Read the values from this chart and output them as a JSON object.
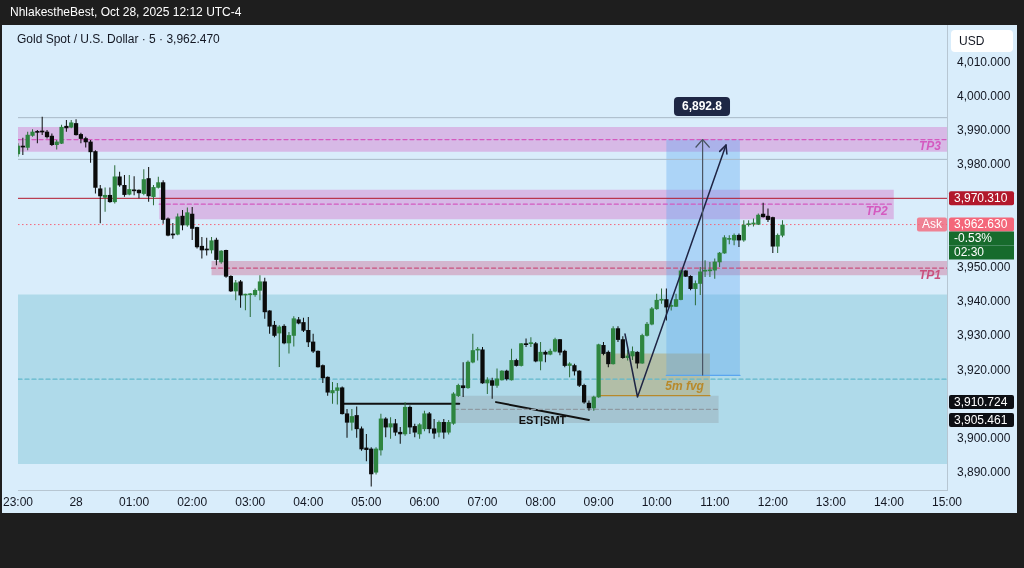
{
  "chart_data": {
    "type": "candlestick",
    "title": "Gold Spot / U.S. Dollar · 5 · 3,962.470",
    "ylabel": "USD",
    "annotations": [
      "NhlakestheBest, Oct 28, 2025 12:12 UTC-4",
      "-0.53%",
      "02:30",
      "6,892.8",
      "3,910.724",
      "3,905.461",
      {
        "text": "Ask",
        "y": 3962.63
      }
    ],
    "x": [
      "2025-10-27T23:00",
      "2025-10-27T23:05",
      "2025-10-27T23:10",
      "2025-10-27T23:15",
      "2025-10-27T23:20",
      "2025-10-27T23:25",
      "2025-10-27T23:30",
      "2025-10-27T23:35",
      "2025-10-27T23:40",
      "2025-10-27T23:45",
      "2025-10-27T23:50",
      "2025-10-27T23:55",
      "2025-10-28T00:00",
      "2025-10-28T00:05",
      "2025-10-28T00:10",
      "2025-10-28T00:15",
      "2025-10-28T00:20",
      "2025-10-28T00:25",
      "2025-10-28T00:30",
      "2025-10-28T00:35",
      "2025-10-28T00:40",
      "2025-10-28T00:45",
      "2025-10-28T00:50",
      "2025-10-28T00:55",
      "2025-10-28T01:00",
      "2025-10-28T01:05",
      "2025-10-28T01:10",
      "2025-10-28T01:15",
      "2025-10-28T01:20",
      "2025-10-28T01:25",
      "2025-10-28T01:30",
      "2025-10-28T01:35",
      "2025-10-28T01:40",
      "2025-10-28T01:45",
      "2025-10-28T01:50",
      "2025-10-28T01:55",
      "2025-10-28T02:00",
      "2025-10-28T02:05",
      "2025-10-28T02:10",
      "2025-10-28T02:15",
      "2025-10-28T02:20",
      "2025-10-28T02:25",
      "2025-10-28T02:30",
      "2025-10-28T02:35",
      "2025-10-28T02:40",
      "2025-10-28T02:45",
      "2025-10-28T02:50",
      "2025-10-28T02:55",
      "2025-10-28T03:00",
      "2025-10-28T03:05",
      "2025-10-28T03:10",
      "2025-10-28T03:15",
      "2025-10-28T03:20",
      "2025-10-28T03:25",
      "2025-10-28T03:30",
      "2025-10-28T03:35",
      "2025-10-28T03:40",
      "2025-10-28T03:45",
      "2025-10-28T03:50",
      "2025-10-28T03:55",
      "2025-10-28T04:00",
      "2025-10-28T04:05",
      "2025-10-28T04:10",
      "2025-10-28T04:15",
      "2025-10-28T04:20",
      "2025-10-28T04:25",
      "2025-10-28T04:30",
      "2025-10-28T04:35",
      "2025-10-28T04:40",
      "2025-10-28T04:45",
      "2025-10-28T04:50",
      "2025-10-28T04:55",
      "2025-10-28T05:00",
      "2025-10-28T05:05",
      "2025-10-28T05:10",
      "2025-10-28T05:15",
      "2025-10-28T05:20",
      "2025-10-28T05:25",
      "2025-10-28T05:30",
      "2025-10-28T05:35",
      "2025-10-28T05:40",
      "2025-10-28T05:45",
      "2025-10-28T05:50",
      "2025-10-28T05:55",
      "2025-10-28T06:00",
      "2025-10-28T06:05",
      "2025-10-28T06:10",
      "2025-10-28T06:15",
      "2025-10-28T06:20",
      "2025-10-28T06:25",
      "2025-10-28T06:30",
      "2025-10-28T06:35",
      "2025-10-28T06:40",
      "2025-10-28T06:45",
      "2025-10-28T06:50",
      "2025-10-28T06:55",
      "2025-10-28T07:00",
      "2025-10-28T07:05",
      "2025-10-28T07:10",
      "2025-10-28T07:15",
      "2025-10-28T07:20",
      "2025-10-28T07:25",
      "2025-10-28T07:30",
      "2025-10-28T07:35",
      "2025-10-28T07:40",
      "2025-10-28T07:45",
      "2025-10-28T07:50",
      "2025-10-28T07:55",
      "2025-10-28T08:00",
      "2025-10-28T08:05",
      "2025-10-28T08:10",
      "2025-10-28T08:15",
      "2025-10-28T08:20",
      "2025-10-28T08:25",
      "2025-10-28T08:30",
      "2025-10-28T08:35",
      "2025-10-28T08:40",
      "2025-10-28T08:45",
      "2025-10-28T08:50",
      "2025-10-28T08:55",
      "2025-10-28T09:00",
      "2025-10-28T09:05",
      "2025-10-28T09:10",
      "2025-10-28T09:15",
      "2025-10-28T09:20",
      "2025-10-28T09:25",
      "2025-10-28T09:30",
      "2025-10-28T09:35",
      "2025-10-28T09:40",
      "2025-10-28T09:45",
      "2025-10-28T09:50",
      "2025-10-28T09:55",
      "2025-10-28T10:00",
      "2025-10-28T10:05",
      "2025-10-28T10:10",
      "2025-10-28T10:15",
      "2025-10-28T10:20",
      "2025-10-28T10:25",
      "2025-10-28T10:30",
      "2025-10-28T10:35",
      "2025-10-28T10:40",
      "2025-10-28T10:45",
      "2025-10-28T10:50",
      "2025-10-28T10:55",
      "2025-10-28T11:00",
      "2025-10-28T11:05",
      "2025-10-28T11:10",
      "2025-10-28T11:15",
      "2025-10-28T11:20",
      "2025-10-28T11:25",
      "2025-10-28T11:30",
      "2025-10-28T11:35",
      "2025-10-28T11:40",
      "2025-10-28T11:45",
      "2025-10-28T11:50",
      "2025-10-28T11:55",
      "2025-10-28T12:00",
      "2025-10-28T12:05",
      "2025-10-28T12:10"
    ],
    "ohlc": [
      [
        3983.3,
        3986.4,
        3982.5,
        3985.6
      ],
      [
        3985.5,
        3988.0,
        3983.0,
        3985.3
      ],
      [
        3985.2,
        3989.8,
        3984.4,
        3988.8
      ],
      [
        3988.7,
        3990.5,
        3988.3,
        3989.7
      ],
      [
        3989.8,
        3990.3,
        3986.4,
        3989.6
      ],
      [
        3989.9,
        3994.2,
        3988.8,
        3989.7
      ],
      [
        3989.7,
        3990.3,
        3987.8,
        3988.3
      ],
      [
        3988.5,
        3989.3,
        3985.6,
        3986.0
      ],
      [
        3986.0,
        3987.4,
        3984.6,
        3986.8
      ],
      [
        3986.4,
        3991.8,
        3986.2,
        3991.1
      ],
      [
        3991.4,
        3993.2,
        3989.8,
        3990.9
      ],
      [
        3991.1,
        3993.2,
        3990.8,
        3992.4
      ],
      [
        3992.2,
        3993.4,
        3988.7,
        3988.9
      ],
      [
        3989.0,
        3989.5,
        3986.4,
        3987.8
      ],
      [
        3987.8,
        3988.3,
        3985.2,
        3986.8
      ],
      [
        3986.8,
        3987.4,
        3980.7,
        3983.9
      ],
      [
        3984.0,
        3984.4,
        3971.7,
        3973.5
      ],
      [
        3973.1,
        3974.2,
        3963.0,
        3971.0
      ],
      [
        3970.6,
        3973.5,
        3966.4,
        3971.2
      ],
      [
        3971.2,
        3973.5,
        3969.0,
        3969.3
      ],
      [
        3969.3,
        3980.0,
        3968.8,
        3976.6
      ],
      [
        3976.6,
        3978.1,
        3973.7,
        3974.2
      ],
      [
        3974.1,
        3977.1,
        3970.8,
        3971.4
      ],
      [
        3971.5,
        3977.1,
        3971.2,
        3972.9
      ],
      [
        3972.7,
        3976.8,
        3971.2,
        3972.5
      ],
      [
        3972.7,
        3972.9,
        3970.3,
        3971.9
      ],
      [
        3971.7,
        3978.8,
        3971.2,
        3975.8
      ],
      [
        3976.1,
        3979.5,
        3969.3,
        3971.0
      ],
      [
        3970.8,
        3974.2,
        3968.3,
        3973.5
      ],
      [
        3973.5,
        3976.6,
        3973.2,
        3974.9
      ],
      [
        3974.9,
        3975.6,
        3962.9,
        3964.1
      ],
      [
        3964.3,
        3964.7,
        3959.2,
        3959.5
      ],
      [
        3959.8,
        3963.1,
        3958.5,
        3959.6
      ],
      [
        3959.8,
        3965.9,
        3959.5,
        3964.9
      ],
      [
        3965.1,
        3966.9,
        3961.0,
        3962.5
      ],
      [
        3962.5,
        3967.6,
        3962.0,
        3966.1
      ],
      [
        3965.7,
        3967.8,
        3958.1,
        3961.5
      ],
      [
        3961.8,
        3962.0,
        3955.6,
        3956.1
      ],
      [
        3956.3,
        3959.0,
        3952.7,
        3955.2
      ],
      [
        3955.4,
        3958.8,
        3953.6,
        3955.2
      ],
      [
        3955.2,
        3959.0,
        3954.2,
        3957.9
      ],
      [
        3958.1,
        3958.8,
        3950.7,
        3952.4
      ],
      [
        3951.7,
        3955.1,
        3951.2,
        3954.9
      ],
      [
        3955.1,
        3955.3,
        3947.1,
        3947.5
      ],
      [
        3947.5,
        3947.8,
        3942.9,
        3943.2
      ],
      [
        3943.2,
        3946.4,
        3940.5,
        3945.6
      ],
      [
        3945.9,
        3946.4,
        3938.3,
        3942.0
      ],
      [
        3942.0,
        3942.4,
        3937.6,
        3942.1
      ],
      [
        3942.1,
        3942.6,
        3935.6,
        3942.3
      ],
      [
        3942.1,
        3943.9,
        3941.5,
        3943.4
      ],
      [
        3943.4,
        3947.8,
        3940.5,
        3945.9
      ],
      [
        3945.9,
        3947.1,
        3935.1,
        3937.1
      ],
      [
        3937.4,
        3937.6,
        3930.7,
        3932.9
      ],
      [
        3933.2,
        3934.4,
        3929.7,
        3930.2
      ],
      [
        3930.9,
        3933.2,
        3921.0,
        3932.7
      ],
      [
        3932.9,
        3933.5,
        3927.6,
        3928.0
      ],
      [
        3928.0,
        3931.2,
        3924.9,
        3930.2
      ],
      [
        3930.2,
        3935.8,
        3927.0,
        3935.1
      ],
      [
        3934.8,
        3935.6,
        3933.5,
        3933.8
      ],
      [
        3934.0,
        3935.4,
        3931.2,
        3931.7
      ],
      [
        3931.7,
        3935.6,
        3926.8,
        3928.3
      ],
      [
        3928.3,
        3930.7,
        3925.1,
        3925.6
      ],
      [
        3925.6,
        3925.8,
        3920.8,
        3921.0
      ],
      [
        3921.4,
        3921.7,
        3916.3,
        3917.8
      ],
      [
        3918.0,
        3918.2,
        3912.6,
        3913.6
      ],
      [
        3913.4,
        3916.6,
        3910.2,
        3914.1
      ],
      [
        3914.1,
        3916.3,
        3910.0,
        3914.9
      ],
      [
        3914.9,
        3915.3,
        3907.1,
        3907.3
      ],
      [
        3907.3,
        3908.7,
        3900.3,
        3904.8
      ],
      [
        3904.8,
        3908.7,
        3902.4,
        3906.5
      ],
      [
        3906.8,
        3909.4,
        3900.3,
        3902.9
      ],
      [
        3902.9,
        3903.6,
        3896.5,
        3897.0
      ],
      [
        3897.3,
        3901.4,
        3893.4,
        3896.8
      ],
      [
        3897.0,
        3897.5,
        3886.0,
        3889.7
      ],
      [
        3890.2,
        3897.5,
        3889.5,
        3897.0
      ],
      [
        3896.7,
        3907.3,
        3895.1,
        3905.8
      ],
      [
        3905.8,
        3906.3,
        3900.4,
        3903.4
      ],
      [
        3903.4,
        3906.3,
        3900.0,
        3904.4
      ],
      [
        3904.4,
        3905.8,
        3900.9,
        3901.9
      ],
      [
        3901.9,
        3903.4,
        3898.5,
        3901.4
      ],
      [
        3901.4,
        3910.7,
        3900.9,
        3909.2
      ],
      [
        3909.2,
        3909.7,
        3901.4,
        3903.4
      ],
      [
        3903.6,
        3904.4,
        3900.4,
        3901.9
      ],
      [
        3901.4,
        3904.5,
        3900.0,
        3904.1
      ],
      [
        3902.9,
        3908.2,
        3902.2,
        3907.3
      ],
      [
        3907.3,
        3907.8,
        3901.6,
        3902.9
      ],
      [
        3902.9,
        3905.8,
        3900.0,
        3901.6
      ],
      [
        3901.9,
        3905.3,
        3900.4,
        3904.8
      ],
      [
        3904.8,
        3905.8,
        3900.0,
        3901.9
      ],
      [
        3901.9,
        3905.5,
        3901.2,
        3904.8
      ],
      [
        3904.5,
        3913.6,
        3904.1,
        3913.1
      ],
      [
        3912.6,
        3916.1,
        3912.2,
        3915.6
      ],
      [
        3915.5,
        3922.4,
        3912.2,
        3914.9
      ],
      [
        3914.9,
        3922.9,
        3914.6,
        3922.4
      ],
      [
        3922.4,
        3930.7,
        3922.1,
        3925.8
      ],
      [
        3925.9,
        3926.8,
        3922.9,
        3926.0
      ],
      [
        3926.0,
        3926.8,
        3916.1,
        3916.3
      ],
      [
        3916.3,
        3918.0,
        3913.1,
        3917.2
      ],
      [
        3917.0,
        3917.8,
        3911.7,
        3915.6
      ],
      [
        3915.6,
        3920.5,
        3914.9,
        3917.5
      ],
      [
        3917.2,
        3920.0,
        3917.0,
        3919.8
      ],
      [
        3919.8,
        3920.2,
        3917.0,
        3917.5
      ],
      [
        3917.2,
        3926.3,
        3917.0,
        3922.9
      ],
      [
        3922.9,
        3923.4,
        3921.1,
        3921.4
      ],
      [
        3921.4,
        3928.0,
        3921.1,
        3927.8
      ],
      [
        3927.8,
        3929.3,
        3926.8,
        3927.5
      ],
      [
        3927.8,
        3929.7,
        3926.8,
        3927.9
      ],
      [
        3927.8,
        3928.3,
        3922.4,
        3922.7
      ],
      [
        3922.7,
        3928.3,
        3920.0,
        3925.3
      ],
      [
        3925.3,
        3925.8,
        3922.4,
        3924.7
      ],
      [
        3924.7,
        3926.3,
        3924.4,
        3925.6
      ],
      [
        3925.6,
        3929.5,
        3925.3,
        3929.0
      ],
      [
        3929.0,
        3929.2,
        3924.4,
        3925.3
      ],
      [
        3925.6,
        3926.0,
        3920.9,
        3921.4
      ],
      [
        3921.4,
        3922.4,
        3918.0,
        3921.9
      ],
      [
        3921.4,
        3921.9,
        3918.5,
        3919.8
      ],
      [
        3919.8,
        3920.0,
        3915.1,
        3915.6
      ],
      [
        3915.6,
        3916.1,
        3910.2,
        3910.7
      ],
      [
        3910.4,
        3911.2,
        3908.2,
        3909.0
      ],
      [
        3909.0,
        3912.6,
        3908.2,
        3912.2
      ],
      [
        3912.2,
        3927.8,
        3912.0,
        3927.5
      ],
      [
        3927.3,
        3928.3,
        3924.4,
        3924.9
      ],
      [
        3925.3,
        3925.8,
        3920.9,
        3921.9
      ],
      [
        3921.9,
        3932.9,
        3921.7,
        3932.2
      ],
      [
        3932.2,
        3932.9,
        3928.3,
        3929.0
      ],
      [
        3929.0,
        3930.0,
        3923.4,
        3923.7
      ],
      [
        3923.7,
        3926.0,
        3922.9,
        3924.2
      ],
      [
        3924.2,
        3927.0,
        3923.0,
        3925.5
      ],
      [
        3925.3,
        3925.6,
        3920.5,
        3922.1
      ],
      [
        3922.1,
        3930.7,
        3921.9,
        3930.2
      ],
      [
        3930.2,
        3934.1,
        3929.9,
        3933.5
      ],
      [
        3933.5,
        3938.5,
        3933.2,
        3938.0
      ],
      [
        3938.0,
        3942.4,
        3937.7,
        3940.5
      ],
      [
        3940.5,
        3943.9,
        3939.5,
        3940.6
      ],
      [
        3940.7,
        3943.9,
        3934.6,
        3938.5
      ],
      [
        3938.7,
        3940.5,
        3937.5,
        3938.8
      ],
      [
        3938.7,
        3942.4,
        3938.5,
        3940.7
      ],
      [
        3940.7,
        3949.5,
        3940.5,
        3949.1
      ],
      [
        3949.1,
        3949.3,
        3947.3,
        3947.5
      ],
      [
        3947.5,
        3947.8,
        3943.4,
        3943.9
      ],
      [
        3943.9,
        3946.3,
        3939.0,
        3945.4
      ],
      [
        3945.4,
        3950.2,
        3942.0,
        3948.8
      ],
      [
        3949.0,
        3952.2,
        3947.3,
        3949.1
      ],
      [
        3949.1,
        3951.7,
        3947.3,
        3949.2
      ],
      [
        3949.3,
        3952.7,
        3946.8,
        3951.7
      ],
      [
        3951.7,
        3954.6,
        3950.2,
        3954.3
      ],
      [
        3954.3,
        3959.5,
        3954.1,
        3958.8
      ],
      [
        3958.3,
        3959.5,
        3956.9,
        3958.4
      ],
      [
        3958.1,
        3960.0,
        3956.6,
        3959.5
      ],
      [
        3959.5,
        3960.0,
        3956.1,
        3958.1
      ],
      [
        3958.1,
        3963.9,
        3957.6,
        3962.5
      ],
      [
        3962.6,
        3963.9,
        3962.1,
        3962.8
      ],
      [
        3962.8,
        3964.4,
        3962.1,
        3962.9
      ],
      [
        3962.7,
        3965.9,
        3962.5,
        3965.4
      ],
      [
        3965.7,
        3969.0,
        3964.7,
        3964.9
      ],
      [
        3965.1,
        3967.3,
        3963.4,
        3964.1
      ],
      [
        3964.7,
        3964.9,
        3954.3,
        3956.3
      ],
      [
        3956.3,
        3960.0,
        3954.3,
        3959.5
      ],
      [
        3959.5,
        3963.9,
        3958.9,
        3962.5
      ]
    ],
    "series": [
      {
        "type": "line",
        "color": "#62b8cc",
        "x": [
          "2025-10-27T23:00",
          "2025-10-28T15:00"
        ],
        "values": [
          3917.4,
          3917.4
        ],
        "lower": [
          3892.6,
          3892.6
        ],
        "upper": [
          3942.2,
          3942.2
        ],
        "line_style": "dashed"
      },
      {
        "type": "line",
        "name": "TP3",
        "color": "#d45ac0",
        "x": [
          "2025-10-27T23:00",
          "2025-10-28T15:00"
        ],
        "values": [
          3987.5,
          3987.5
        ],
        "lower": [
          3983.9,
          3983.9
        ],
        "upper": [
          3991.2,
          3991.2
        ],
        "line_style": "dashed"
      },
      {
        "type": "line",
        "name": "TP2",
        "color": "#d45ac0",
        "x": [
          "2025-10-28T01:26",
          "2025-10-28T14:05"
        ],
        "values": [
          3968.6,
          3968.6
        ],
        "lower": [
          3964.2,
          3964.2
        ],
        "upper": [
          3972.8,
          3972.8
        ],
        "line_style": "dashed"
      },
      {
        "type": "line",
        "name": "TP1",
        "color": "#c9507e",
        "x": [
          "2025-10-28T02:20",
          "2025-10-28T15:00"
        ],
        "values": [
          3949.9,
          3949.9
        ],
        "lower": [
          3947.8,
          3947.8
        ],
        "upper": [
          3952,
          3952
        ],
        "line_style": "dashed"
      },
      {
        "type": "line",
        "color": "#8e9aa3",
        "x": [
          "2025-10-28T06:31",
          "2025-10-28T11:04"
        ],
        "values": [
          3908.6,
          3908.6
        ],
        "lower": [
          3904.6,
          3904.6
        ],
        "upper": [
          3912.6,
          3912.6
        ],
        "line_style": "dashed"
      },
      {
        "type": "line",
        "name": "5m fvg",
        "color": "#b8892a",
        "x": [
          "2025-10-28T09:01",
          "2025-10-28T10:55"
        ],
        "values": [
          3912.6,
          3912.6
        ],
        "lower": [
          3912.6,
          3912.6
        ],
        "upper": [
          3924.9,
          3924.9
        ],
        "line_style": "solid"
      },
      {
        "type": "line",
        "color": "#5aa5f0",
        "x": [
          "2025-10-28T10:10",
          "2025-10-28T11:26"
        ],
        "values": [
          3918.5,
          3918.5
        ],
        "lower": [
          3918.5,
          3918.5
        ],
        "upper": [
          3987.5,
          3987.5
        ],
        "line_style": "solid"
      },
      {
        "type": "line",
        "color": "#111111",
        "x": [
          "2025-10-28T04:37",
          "2025-10-28T06:36"
        ],
        "values": [
          3910.2,
          3910.2
        ],
        "line_style": "solid"
      },
      {
        "type": "line",
        "name": "EST|SMT",
        "color": "#111111",
        "x": [
          "2025-10-28T07:14",
          "2025-10-28T08:50"
        ],
        "values": [
          3910.7,
          3905.5
        ],
        "line_style": "solid"
      }
    ],
    "xlim": [
      "2025-10-27T23:00",
      "2025-10-28T15:00"
    ],
    "xticks": [
      {
        "value": "2025-10-27T23:00",
        "label": "23:00"
      },
      {
        "value": "2025-10-28",
        "label": "28"
      },
      {
        "value": "2025-10-28T01:00",
        "label": "01:00"
      },
      {
        "value": "2025-10-28T02:00",
        "label": "02:00"
      },
      {
        "value": "2025-10-28T03:00",
        "label": "03:00"
      },
      {
        "value": "2025-10-28T04:00",
        "label": "04:00"
      },
      {
        "value": "2025-10-28T05:00",
        "label": "05:00"
      },
      {
        "value": "2025-10-28T06:00",
        "label": "06:00"
      },
      {
        "value": "2025-10-28T07:00",
        "label": "07:00"
      },
      {
        "value": "2025-10-28T08:00",
        "label": "08:00"
      },
      {
        "value": "2025-10-28T09:00",
        "label": "09:00"
      },
      {
        "value": "2025-10-28T10:00",
        "label": "10:00"
      },
      {
        "value": "2025-10-28T11:00",
        "label": "11:00"
      },
      {
        "value": "2025-10-28T12:00",
        "label": "12:00"
      },
      {
        "value": "2025-10-28T13:00",
        "label": "13:00"
      },
      {
        "value": "2025-10-28T14:00",
        "label": "14:00"
      },
      {
        "value": "2025-10-28T15:00",
        "label": "15:00"
      }
    ],
    "ylim": [
      3885,
      4021
    ],
    "yticks": [
      {
        "value": 3890,
        "label": "3,890.000"
      },
      {
        "value": 3900,
        "label": "3,900.000"
      },
      {
        "value": 3920,
        "label": "3,920.000"
      },
      {
        "value": 3930,
        "label": "3,930.000"
      },
      {
        "value": 3940,
        "label": "3,940.000"
      },
      {
        "value": 3950,
        "label": "3,950.000"
      },
      {
        "value": 3980,
        "label": "3,980.000"
      },
      {
        "value": 3990,
        "label": "3,990.000"
      },
      {
        "value": 4000,
        "label": "4,000.000"
      },
      {
        "value": 4010,
        "label": "4,010.000"
      }
    ],
    "ref_lines": [
      {
        "axis": "y",
        "value": 3993.9,
        "color": "#a9b9c7"
      },
      {
        "axis": "y",
        "value": 3981.7,
        "color": "#a9b9c7"
      },
      {
        "axis": "y",
        "value": 3970.31,
        "label": "3,970.310",
        "color": "#b2182b"
      },
      {
        "axis": "y",
        "value": 3962.63,
        "label": "3,962.630",
        "color": "#f4677a",
        "line_style": "dotted"
      }
    ]
  }
}
